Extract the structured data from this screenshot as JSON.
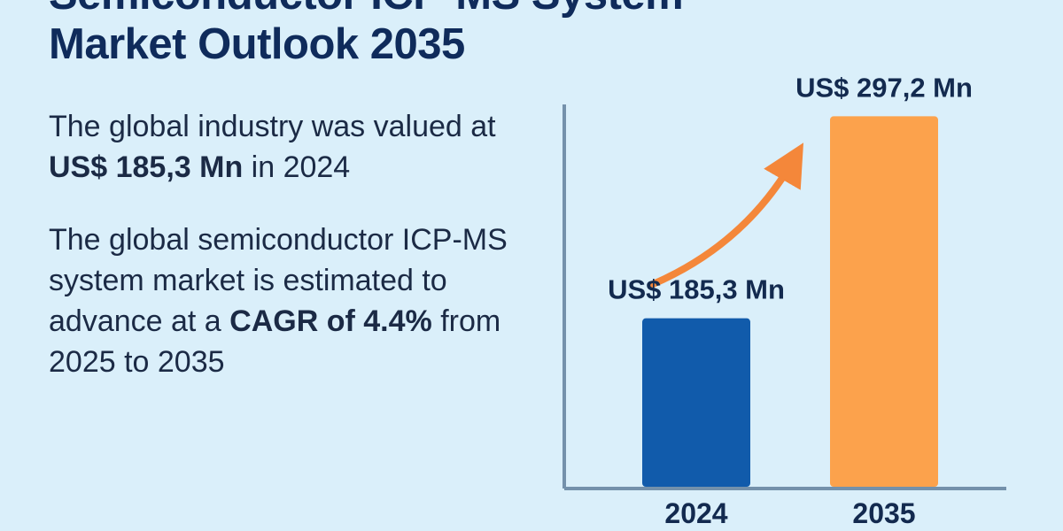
{
  "title": {
    "line1": "Semiconductor ICP-MS System",
    "line2": "Market Outlook 2035"
  },
  "paragraph1": {
    "pre": "The global industry was valued at ",
    "bold": "US$ 185,3 Mn",
    "post": " in 2024"
  },
  "paragraph2": {
    "pre": "The global semiconductor ICP-MS system market is estimated to advance at a ",
    "bold": "CAGR of 4.4%",
    "post": " from 2025 to 2035"
  },
  "chart_data": {
    "type": "bar",
    "categories": [
      "2024",
      "2035"
    ],
    "values": [
      185.3,
      297.2
    ],
    "value_labels": [
      "US$ 185,3 Mn",
      "US$ 297,2 Mn"
    ],
    "unit": "US$ Mn",
    "colors": [
      "#115bab",
      "#fca24c"
    ],
    "arrow_color": "#f4873a",
    "grid": false,
    "legend": "none"
  }
}
